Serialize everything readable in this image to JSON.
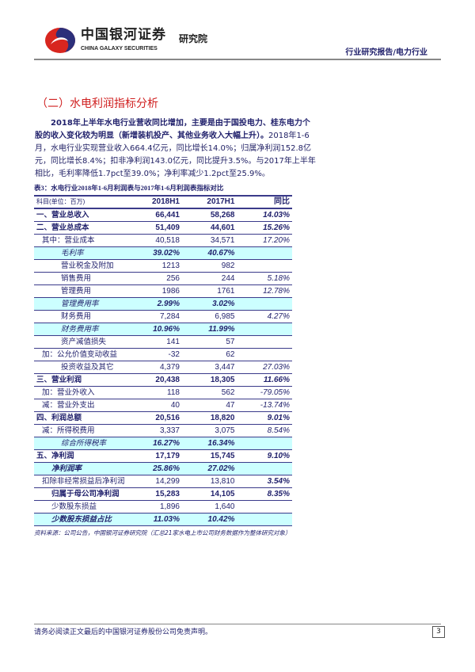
{
  "header": {
    "brand_cn": "中国银河证券",
    "brand_en": "CHINA GALAXY SECURITIES",
    "brand_institute": "研究院",
    "report_type": "行业研究报告/电力行业"
  },
  "section_title": "（二）水电利润指标分析",
  "paragraph": {
    "bold": "2018年上半年水电行业营收同比增加，主要是由于国投电力、桂东电力个股的收入变化较为明显（新增装机投产、其他业务收入大幅上升）。",
    "normal": "2018年1-6月，水电行业实现营业收入664.4亿元，同比增长14.0%；归属净利润152.8亿元，同比增长8.4%；扣非净利润143.0亿元，同比提升3.5%。与2017年上半年相比，毛利率降低1.7pct至39.0%；净利率减少1.2pct至25.9%。"
  },
  "table": {
    "caption": "表3：水电行业2018年1-6月利润表与2017年1-6月利润表指标对比",
    "headers": [
      "科目(单位：百万)",
      "2018H1",
      "2017H1",
      "同比"
    ],
    "rows": [
      {
        "kind": "total",
        "label": "一、营业总收入",
        "v2018": "66,441",
        "v2017": "58,268",
        "yoy": "14.03%"
      },
      {
        "kind": "total",
        "label": "二、营业总成本",
        "v2018": "51,409",
        "v2017": "44,601",
        "yoy": "15.26%"
      },
      {
        "kind": "sub",
        "label": "其中：营业成本",
        "v2018": "40,518",
        "v2017": "34,571",
        "yoy": "17.20%"
      },
      {
        "kind": "ratio",
        "label": "毛利率",
        "v2018": "39.02%",
        "v2017": "40.67%",
        "yoy": ""
      },
      {
        "kind": "detail",
        "label": "营业税金及附加",
        "v2018": "1213",
        "v2017": "982",
        "yoy": ""
      },
      {
        "kind": "detail",
        "label": "销售费用",
        "v2018": "256",
        "v2017": "244",
        "yoy": "5.18%"
      },
      {
        "kind": "detail",
        "label": "管理费用",
        "v2018": "1986",
        "v2017": "1761",
        "yoy": "12.78%"
      },
      {
        "kind": "ratio",
        "label": "管理费用率",
        "v2018": "2.99%",
        "v2017": "3.02%",
        "yoy": ""
      },
      {
        "kind": "detail",
        "label": "财务费用",
        "v2018": "7,284",
        "v2017": "6,985",
        "yoy": "4.27%"
      },
      {
        "kind": "ratio",
        "label": "财务费用率",
        "v2018": "10.96%",
        "v2017": "11.99%",
        "yoy": ""
      },
      {
        "kind": "detail",
        "label": "资产减值损失",
        "v2018": "141",
        "v2017": "57",
        "yoy": ""
      },
      {
        "kind": "sub",
        "label": "加：公允价值变动收益",
        "v2018": "-32",
        "v2017": "62",
        "yoy": ""
      },
      {
        "kind": "detail",
        "label": "投资收益及其它",
        "v2018": "4,379",
        "v2017": "3,447",
        "yoy": "27.03%"
      },
      {
        "kind": "total",
        "label": "三、营业利润",
        "v2018": "20,438",
        "v2017": "18,305",
        "yoy": "11.66%"
      },
      {
        "kind": "sub",
        "label": "加：营业外收入",
        "v2018": "118",
        "v2017": "562",
        "yoy": "-79.05%"
      },
      {
        "kind": "sub",
        "label": "减：营业外支出",
        "v2018": "40",
        "v2017": "47",
        "yoy": "-13.74%"
      },
      {
        "kind": "total",
        "label": "四、利润总额",
        "v2018": "20,516",
        "v2017": "18,820",
        "yoy": "9.01%"
      },
      {
        "kind": "sub",
        "label": "减：所得税费用",
        "v2018": "3,337",
        "v2017": "3,075",
        "yoy": "8.54%"
      },
      {
        "kind": "ratio",
        "label": "综合所得税率",
        "v2018": "16.27%",
        "v2017": "16.34%",
        "yoy": ""
      },
      {
        "kind": "total",
        "label": "五、净利润",
        "v2018": "17,179",
        "v2017": "15,745",
        "yoy": "9.10%"
      },
      {
        "kind": "ratio2",
        "label": "净利润率",
        "v2018": "25.86%",
        "v2017": "27.02%",
        "yoy": ""
      },
      {
        "kind": "sub-boldyoy",
        "label": "扣除非经常损益后净利润",
        "v2018": "14,299",
        "v2017": "13,810",
        "yoy": "3.54%"
      },
      {
        "kind": "attr",
        "label": "归属于母公司净利润",
        "v2018": "15,283",
        "v2017": "14,105",
        "yoy": "8.35%"
      },
      {
        "kind": "ratio2-plain",
        "label": "少数股东损益",
        "v2018": "1,896",
        "v2017": "1,640",
        "yoy": ""
      },
      {
        "kind": "ratio2",
        "label": "少数股东损益占比",
        "v2018": "11.03%",
        "v2017": "10.42%",
        "yoy": ""
      }
    ],
    "source": "资料来源：公司公告，中国银河证券研究院（汇总21家水电上市公司财务数据作为整体研究对象）"
  },
  "footer": {
    "disclaimer": "请务必阅读正文最后的中国银河证券股份公司免责声明。",
    "page": "3"
  },
  "colors": {
    "brand_red": "#d02020",
    "brand_navy": "#1f1f6b",
    "highlight": "#ccffff"
  }
}
